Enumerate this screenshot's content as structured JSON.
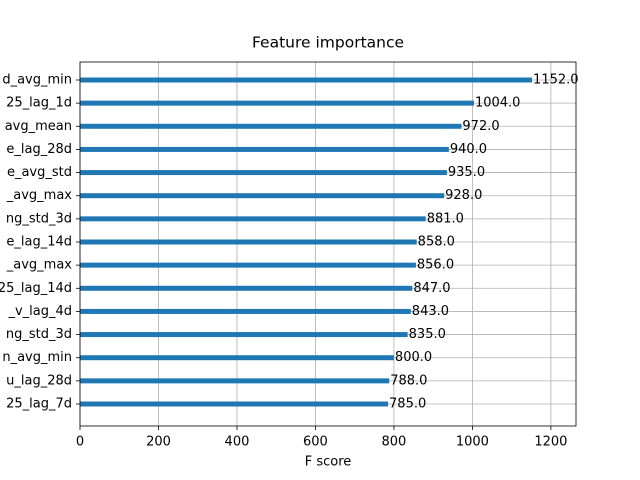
{
  "chart_data": {
    "type": "barh",
    "title": "Feature importance",
    "x_label": "F score",
    "categories": [
      "d_avg_min",
      "25_lag_1d",
      "avg_mean",
      "e_lag_28d",
      "e_avg_std",
      "_avg_max",
      "ng_std_3d",
      "e_lag_14d",
      "_avg_max",
      "25_lag_14d",
      "_v_lag_4d",
      "ng_std_3d",
      "n_avg_min",
      "u_lag_28d",
      "25_lag_7d"
    ],
    "values": [
      1152,
      1004,
      972,
      940,
      935,
      928,
      881,
      858,
      856,
      847,
      843,
      835,
      800,
      788,
      785
    ],
    "value_labels": [
      "1152.0",
      "1004.0",
      "972.0",
      "940.0",
      "935.0",
      "928.0",
      "881.0",
      "858.0",
      "856.0",
      "847.0",
      "843.0",
      "835.0",
      "800.0",
      "788.0",
      "785.0"
    ],
    "color": "#1f77b4",
    "xlim": [
      0,
      1264
    ],
    "xticks": [
      0,
      200,
      400,
      600,
      800,
      1000,
      1200
    ],
    "grid": true
  }
}
